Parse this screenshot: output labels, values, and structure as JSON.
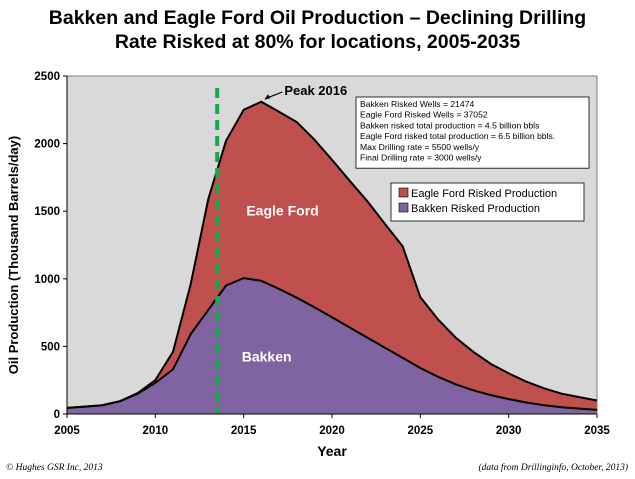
{
  "title_line1": "Bakken and Eagle Ford Oil Production – Declining Drilling",
  "title_line2": "Rate Risked at 80% for locations, 2005-2035",
  "footer_left": "© Hughes GSR Inc, 2013",
  "footer_right": "(data from Drillinginfo, October, 2013)",
  "chart_data": {
    "type": "area",
    "stacked": true,
    "xlabel": "Year",
    "ylabel": "Oil Production (Thousand Barrels/day)",
    "xlim": [
      2005,
      2035
    ],
    "ylim": [
      0,
      2500
    ],
    "xticks": [
      2005,
      2010,
      2015,
      2020,
      2025,
      2030,
      2035
    ],
    "yticks": [
      0,
      500,
      1000,
      1500,
      2000,
      2500
    ],
    "grid": false,
    "plot_background": "#d9d9d9",
    "x": [
      2005,
      2006,
      2007,
      2008,
      2009,
      2010,
      2011,
      2012,
      2013,
      2014,
      2015,
      2016,
      2017,
      2018,
      2019,
      2020,
      2021,
      2022,
      2023,
      2024,
      2025,
      2026,
      2027,
      2028,
      2029,
      2030,
      2031,
      2032,
      2033,
      2034,
      2035
    ],
    "series": [
      {
        "name": "Bakken Risked Production",
        "color": "#8064a2",
        "values": [
          45,
          55,
          65,
          95,
          150,
          230,
          330,
          590,
          770,
          950,
          1005,
          985,
          925,
          860,
          790,
          715,
          640,
          565,
          490,
          415,
          340,
          275,
          220,
          175,
          140,
          110,
          85,
          65,
          50,
          40,
          30
        ]
      },
      {
        "name": "Eagle Ford Risked Production",
        "color": "#c0504d",
        "values": [
          0,
          0,
          0,
          0,
          5,
          20,
          130,
          370,
          820,
          1070,
          1245,
          1325,
          1310,
          1300,
          1240,
          1165,
          1085,
          1010,
          915,
          825,
          525,
          425,
          345,
          285,
          230,
          190,
          155,
          125,
          100,
          85,
          70
        ]
      }
    ],
    "total_line": [
      45,
      55,
      65,
      95,
      155,
      250,
      460,
      960,
      1590,
      2020,
      2250,
      2310,
      2235,
      2160,
      2030,
      1880,
      1725,
      1575,
      1405,
      1240,
      865,
      700,
      565,
      460,
      370,
      300,
      240,
      190,
      150,
      125,
      100
    ],
    "drilling_decline_marker_x": 2013.5,
    "area_labels": [
      {
        "text": "Eagle Ford",
        "x": 2017.2,
        "y": 1470
      },
      {
        "text": "Bakken",
        "x": 2016.3,
        "y": 390
      }
    ],
    "peak_annotation": {
      "text": "Peak 2016",
      "x": 2016,
      "y": 2310
    },
    "info_box_lines": [
      "Bakken Risked Wells = 21474",
      "Eagle Ford Risked Wells = 37052",
      "Bakken risked total production = 4.5 billion bbls",
      "Eagle Ford risked total production = 6.5 billion bbls.",
      "Max Drilling rate = 5500 wells/y",
      "Final Drilling rate = 3000 wells/y"
    ],
    "legend_placement": "right",
    "legend": [
      "Eagle Ford Risked Production",
      "Bakken Risked Production"
    ]
  }
}
